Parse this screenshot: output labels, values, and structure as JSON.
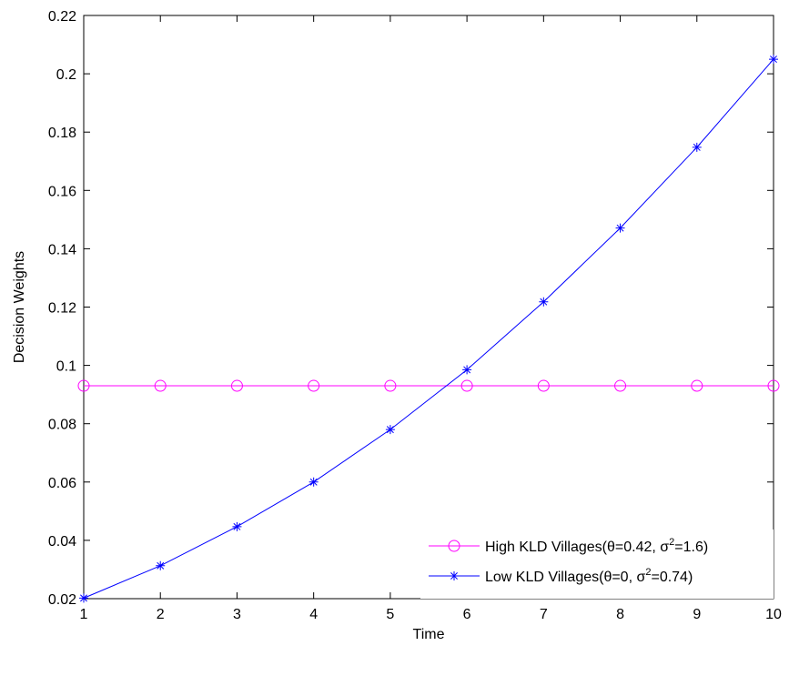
{
  "chart_data": {
    "type": "line",
    "title": "",
    "xlabel": "Time",
    "ylabel": "Decision Weights",
    "x": [
      1,
      2,
      3,
      4,
      5,
      6,
      7,
      8,
      9,
      10
    ],
    "xlim": [
      1,
      10
    ],
    "ylim": [
      0.02,
      0.22
    ],
    "xticks": [
      "1",
      "2",
      "3",
      "4",
      "5",
      "6",
      "7",
      "8",
      "9",
      "10"
    ],
    "yticks": [
      "0.02",
      "0.04",
      "0.06",
      "0.08",
      "0.1",
      "0.12",
      "0.14",
      "0.16",
      "0.18",
      "0.2",
      "0.22"
    ],
    "grid": false,
    "legend_position": "bottom-right",
    "series": [
      {
        "name": "High KLD Villages(θ=0.42, σ²=1.6)",
        "legend_text": {
          "main": "High KLD Villages(θ=0.42, σ",
          "sup": "2",
          "tail": "=1.6)"
        },
        "color": "#ff00ff",
        "marker": "circle",
        "values": [
          0.093,
          0.093,
          0.093,
          0.093,
          0.093,
          0.093,
          0.093,
          0.093,
          0.093,
          0.093
        ]
      },
      {
        "name": "Low KLD Villages(θ=0, σ²=0.74)",
        "legend_text": {
          "main": "Low KLD Villages(θ=0, σ",
          "sup": "2",
          "tail": "=0.74)"
        },
        "color": "#0000ff",
        "marker": "asterisk",
        "values": [
          0.0202,
          0.0313,
          0.0447,
          0.06,
          0.078,
          0.0985,
          0.1218,
          0.1471,
          0.1748,
          0.205
        ]
      }
    ]
  }
}
